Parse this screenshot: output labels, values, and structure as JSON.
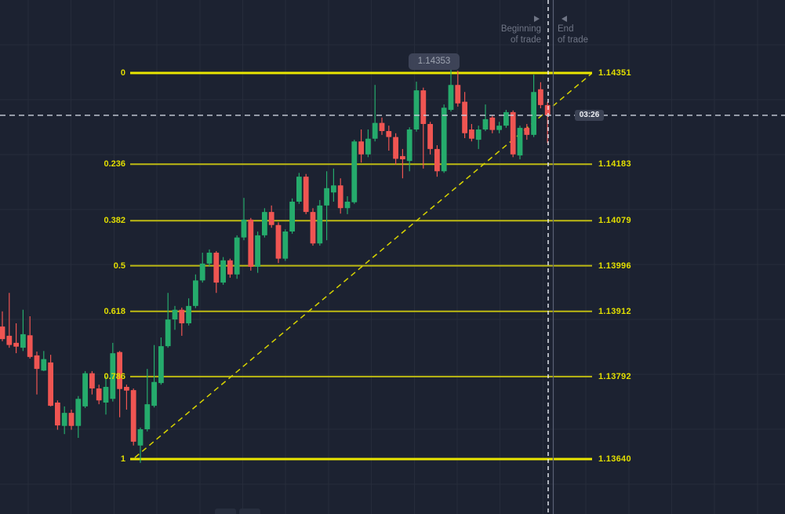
{
  "colors": {
    "background": "#1c2231",
    "grid": "#262c3b",
    "bull_candle": "#25ab6c",
    "bear_candle": "#ef5552",
    "fib_bright": "#eae600",
    "fib_dim": "#bdb913",
    "fib_label": "#e3df00",
    "trendline": "#d8d400",
    "current_price_line": "#ccd2dd",
    "beginning_line": "#eef1f7",
    "end_line": "#596075",
    "trade_label_gray": "#6f7585",
    "time_badge_bg": "#3b4254",
    "tooltip_bg": "#40475a"
  },
  "price_tooltip": "1.14353",
  "time_badge": "03:26",
  "trade_markers": {
    "beginning_line1": "Beginning",
    "beginning_line2": "of trade",
    "end_line1": "End",
    "end_line2": "of trade"
  },
  "chart_data": {
    "type": "candlestick",
    "grid": true,
    "price_axis_side": "right",
    "current_price": 1.14273,
    "current_time_label": "03:26",
    "last_quote_tooltip": 1.14353,
    "fibonacci_levels": [
      {
        "ratio": "0",
        "price": 1.14351,
        "label": "1.14351"
      },
      {
        "ratio": "0.236",
        "price": 1.14183,
        "label": "1.14183"
      },
      {
        "ratio": "0.382",
        "price": 1.14079,
        "label": "1.14079"
      },
      {
        "ratio": "0.5",
        "price": 1.13996,
        "label": "1.13996"
      },
      {
        "ratio": "0.618",
        "price": 1.13912,
        "label": "1.13912"
      },
      {
        "ratio": "0.786",
        "price": 1.13792,
        "label": "1.13792"
      },
      {
        "ratio": "1",
        "price": 1.1364,
        "label": "1.13640"
      }
    ],
    "trendline": {
      "style": "dashed",
      "from_price": 1.1364,
      "to_price": 1.14351
    },
    "candles": {
      "note": "OHLC estimated from pixels against Fibonacci price anchors",
      "ohlc": [
        [
          1.13884,
          1.13912,
          1.13857,
          1.13861
        ],
        [
          1.13867,
          1.13946,
          1.13845,
          1.1385
        ],
        [
          1.13854,
          1.1389,
          1.13835,
          1.13847
        ],
        [
          1.13845,
          1.13915,
          1.13839,
          1.1387
        ],
        [
          1.13868,
          1.13903,
          1.13825,
          1.13828
        ],
        [
          1.13831,
          1.13838,
          1.13759,
          1.13806
        ],
        [
          1.13803,
          1.13839,
          1.13802,
          1.13824
        ],
        [
          1.13818,
          1.13832,
          1.13737,
          1.13738
        ],
        [
          1.13744,
          1.13748,
          1.13694,
          1.13702
        ],
        [
          1.13701,
          1.13737,
          1.13686,
          1.13725
        ],
        [
          1.13725,
          1.13731,
          1.13694,
          1.13701
        ],
        [
          1.13701,
          1.13756,
          1.13679,
          1.13751
        ],
        [
          1.13737,
          1.13802,
          1.13734,
          1.13798
        ],
        [
          1.13798,
          1.13802,
          1.13759,
          1.1377
        ],
        [
          1.1377,
          1.13777,
          1.13741,
          1.13748
        ],
        [
          1.13744,
          1.13792,
          1.13722,
          1.13773
        ],
        [
          1.13751,
          1.13854,
          1.13746,
          1.13835
        ],
        [
          1.13837,
          1.13839,
          1.13717,
          1.13769
        ],
        [
          1.13773,
          1.13777,
          1.13731,
          1.13766
        ],
        [
          1.13767,
          1.1377,
          1.13665,
          1.13672
        ],
        [
          1.13665,
          1.13698,
          1.13633,
          1.13695
        ],
        [
          1.13695,
          1.13806,
          1.13691,
          1.13741
        ],
        [
          1.13738,
          1.1385,
          1.13735,
          1.13782
        ],
        [
          1.1378,
          1.13864,
          1.13777,
          1.13848
        ],
        [
          1.13848,
          1.13946,
          1.13845,
          1.13897
        ],
        [
          1.13897,
          1.13922,
          1.13878,
          1.13915
        ],
        [
          1.13915,
          1.13919,
          1.13867,
          1.1389
        ],
        [
          1.1389,
          1.13936,
          1.13886,
          1.13922
        ],
        [
          1.13922,
          1.1398,
          1.13918,
          1.13969
        ],
        [
          1.13969,
          1.1402,
          1.13965,
          1.14
        ],
        [
          1.14,
          1.14026,
          1.13994,
          1.1402
        ],
        [
          1.1402,
          1.14023,
          1.13946,
          1.13965
        ],
        [
          1.13965,
          1.14012,
          1.13961,
          1.14006
        ],
        [
          1.14006,
          1.14009,
          1.13974,
          1.1398
        ],
        [
          1.1398,
          1.14052,
          1.13972,
          1.14048
        ],
        [
          1.14048,
          1.14121,
          1.14043,
          1.14081
        ],
        [
          1.14081,
          1.14084,
          1.13987,
          1.13994
        ],
        [
          1.13994,
          1.14059,
          1.13983,
          1.14052
        ],
        [
          1.14052,
          1.14102,
          1.14048,
          1.14095
        ],
        [
          1.14095,
          1.14107,
          1.14066,
          1.14071
        ],
        [
          1.14071,
          1.14076,
          1.14001,
          1.14009
        ],
        [
          1.14009,
          1.14063,
          1.14005,
          1.14059
        ],
        [
          1.14059,
          1.1412,
          1.14055,
          1.14114
        ],
        [
          1.14114,
          1.14167,
          1.1411,
          1.1416
        ],
        [
          1.1416,
          1.14165,
          1.14091,
          1.14095
        ],
        [
          1.14095,
          1.14102,
          1.14033,
          1.14037
        ],
        [
          1.14037,
          1.14117,
          1.14033,
          1.14107
        ],
        [
          1.14107,
          1.1417,
          1.14043,
          1.14139
        ],
        [
          1.14131,
          1.14175,
          1.14114,
          1.14144
        ],
        [
          1.14144,
          1.14157,
          1.14092,
          1.14102
        ],
        [
          1.14102,
          1.14124,
          1.14091,
          1.14114
        ],
        [
          1.14113,
          1.14228,
          1.1411,
          1.14225
        ],
        [
          1.14225,
          1.14247,
          1.14186,
          1.14201
        ],
        [
          1.14201,
          1.14247,
          1.14196,
          1.1423
        ],
        [
          1.1423,
          1.14329,
          1.14225,
          1.14259
        ],
        [
          1.14259,
          1.14269,
          1.14237,
          1.14244
        ],
        [
          1.14244,
          1.14254,
          1.14208,
          1.14233
        ],
        [
          1.14233,
          1.1424,
          1.14182,
          1.14193
        ],
        [
          1.14198,
          1.14211,
          1.14157,
          1.14192
        ],
        [
          1.14189,
          1.14251,
          1.1417,
          1.14247
        ],
        [
          1.14247,
          1.14335,
          1.14243,
          1.14319
        ],
        [
          1.14319,
          1.14324,
          1.14175,
          1.14257
        ],
        [
          1.14257,
          1.14261,
          1.14201,
          1.14211
        ],
        [
          1.14211,
          1.14218,
          1.1416,
          1.1417
        ],
        [
          1.1417,
          1.14293,
          1.14167,
          1.14287
        ],
        [
          1.14283,
          1.14357,
          1.1428,
          1.14329
        ],
        [
          1.14329,
          1.14355,
          1.14289,
          1.14295
        ],
        [
          1.14298,
          1.14316,
          1.14231,
          1.1424
        ],
        [
          1.14247,
          1.14257,
          1.14225,
          1.1423
        ],
        [
          1.14228,
          1.14254,
          1.14211,
          1.14247
        ],
        [
          1.14247,
          1.14293,
          1.14244,
          1.14266
        ],
        [
          1.14269,
          1.14272,
          1.1424,
          1.14246
        ],
        [
          1.14246,
          1.14261,
          1.1424,
          1.14254
        ],
        [
          1.14254,
          1.14283,
          1.1425,
          1.14279
        ],
        [
          1.14279,
          1.14282,
          1.14196,
          1.14201
        ],
        [
          1.14199,
          1.14254,
          1.14192,
          1.1425
        ],
        [
          1.1425,
          1.14257,
          1.14228,
          1.14237
        ],
        [
          1.14237,
          1.14348,
          1.14233,
          1.14316
        ],
        [
          1.14321,
          1.14334,
          1.14286,
          1.14292
        ],
        [
          1.14292,
          1.14298,
          1.14222,
          1.14273
        ]
      ]
    }
  }
}
